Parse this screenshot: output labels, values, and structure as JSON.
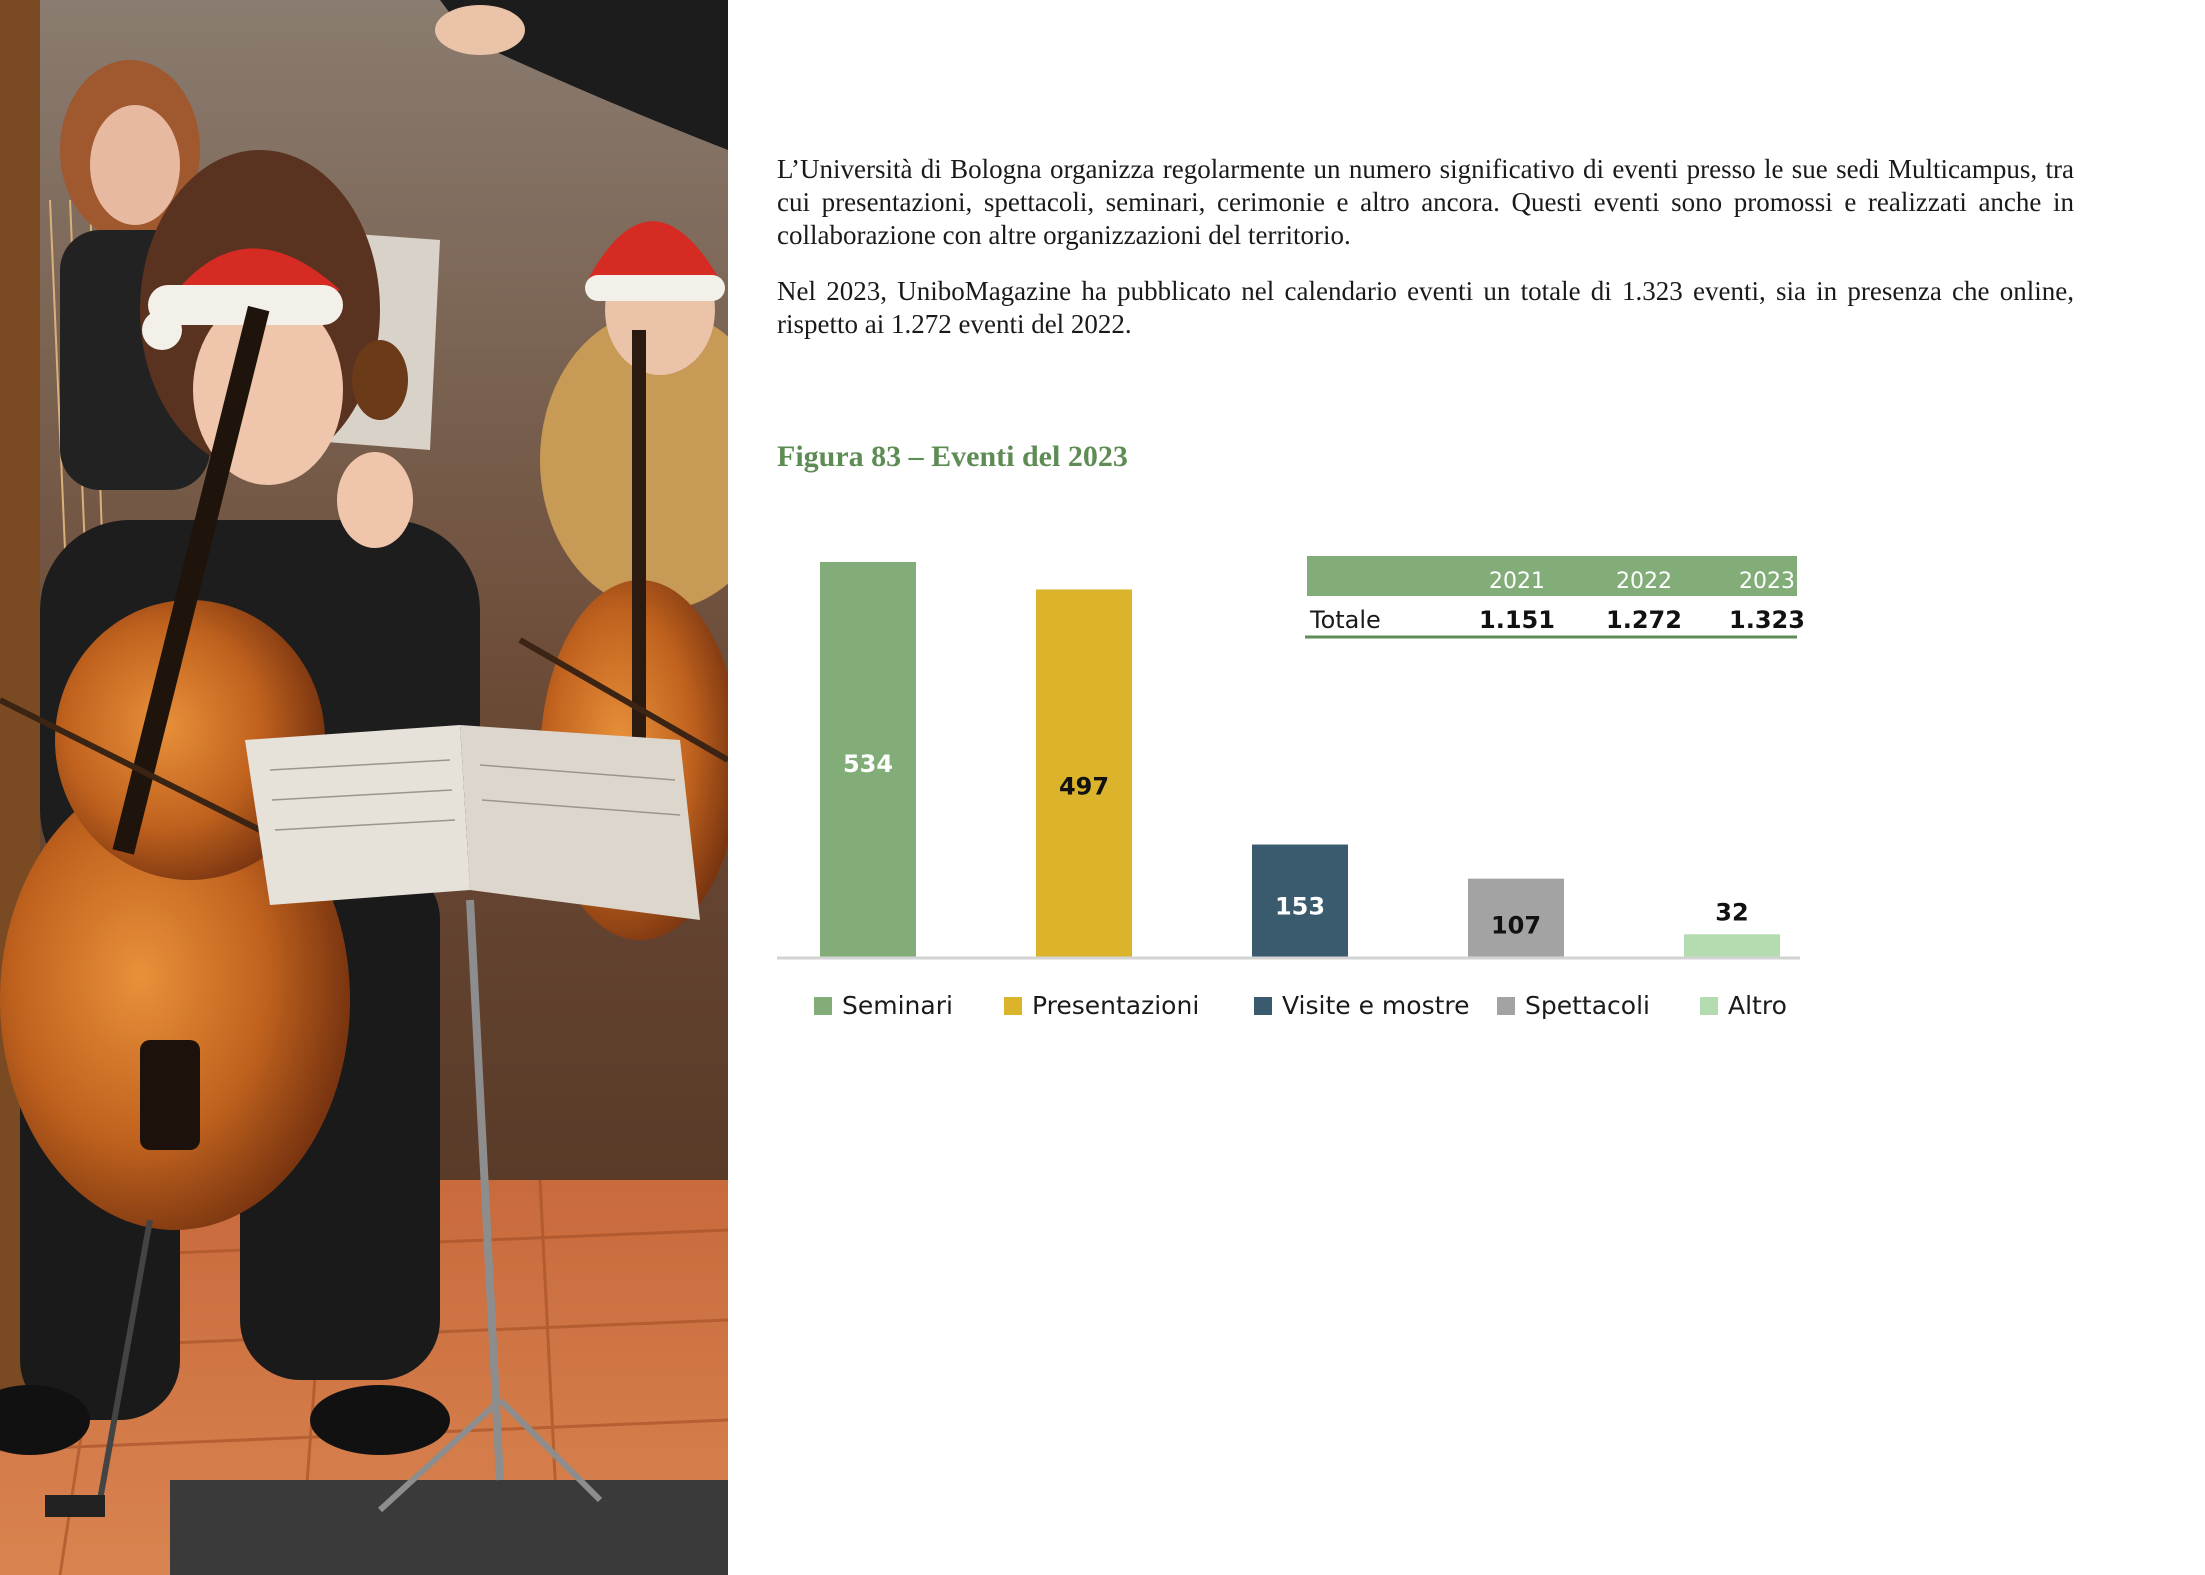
{
  "paragraphs": {
    "p1": "L’Università di Bologna organizza regolarmente un numero significativo di eventi presso le sue sedi Multicampus, tra cui presentazioni, spettacoli, seminari, cerimonie e altro ancora. Questi eventi sono promossi e realizzati anche in collaborazione con altre organizzazioni del territorio.",
    "p2": "Nel 2023, UniboMagazine ha pubblicato nel calendario eventi un totale di 1.323 eventi, sia in presenza che online, rispetto ai 1.272 eventi del 2022."
  },
  "figure": {
    "title": "Figura 83 – Eventi del 2023"
  },
  "photo": {
    "icon": "orchestra-cellists-photo"
  },
  "chart_data": {
    "type": "bar",
    "categories": [
      "Seminari",
      "Presentazioni",
      "Visite e mostre",
      "Spettacoli",
      "Altro"
    ],
    "values": [
      534,
      497,
      153,
      107,
      32
    ],
    "data_labels": [
      "534",
      "497",
      "153",
      "107",
      "32"
    ],
    "colors": [
      "#82ad79",
      "#dbb42b",
      "#3a5a6e",
      "#a3a3a3",
      "#b5dcb1"
    ],
    "label_colors": [
      "#ffffff",
      "#111111",
      "#ffffff",
      "#111111",
      "#111111"
    ],
    "title": "",
    "xlabel": "",
    "ylabel": "",
    "ylim": [
      0,
      534
    ],
    "grid": false,
    "legend_position": "bottom",
    "axis_color": "#d3d3d3",
    "inset_table": {
      "header": [
        "",
        "2021",
        "2022",
        "2023"
      ],
      "rows": [
        {
          "label": "Totale",
          "values": [
            "1.151",
            "1.272",
            "1.323"
          ]
        }
      ],
      "header_color": "#82ad79",
      "rule_color": "#5e8c55"
    }
  }
}
